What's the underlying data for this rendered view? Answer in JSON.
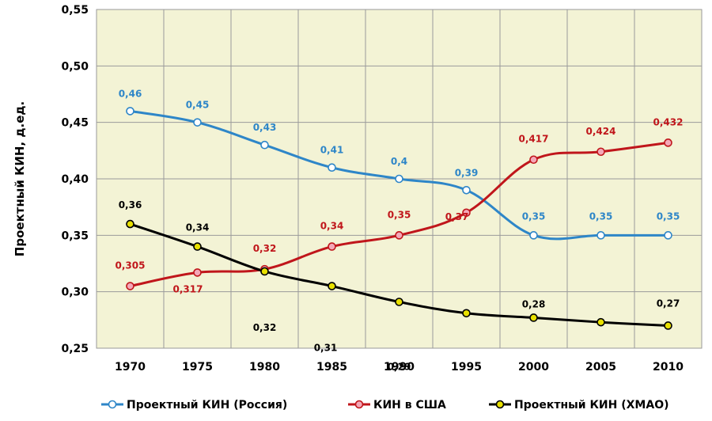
{
  "chart_data": {
    "type": "line",
    "ylabel": "Проектный КИН, д.ед.",
    "ylim": [
      0.25,
      0.55
    ],
    "grid": true,
    "legend_position": "bottom",
    "x": [
      "1970",
      "1975",
      "1980",
      "1985",
      "1990",
      "1995",
      "2000",
      "2005",
      "2010"
    ],
    "y_ticks": [
      "0,25",
      "0,30",
      "0,35",
      "0,40",
      "0,45",
      "0,50",
      "0,55"
    ],
    "plot_background": "#f3f3d5",
    "series": [
      {
        "name": "Проектный КИН (Россия)",
        "color": "#2e86c8",
        "marker_fill": "#ffffff",
        "values": [
          0.46,
          0.45,
          0.43,
          0.41,
          0.4,
          0.39,
          0.35,
          0.35,
          0.35
        ],
        "labels": [
          "0,46",
          "0,45",
          "0,43",
          "0,41",
          "0,4",
          "0,39",
          "0,35",
          "0,35",
          "0,35"
        ]
      },
      {
        "name": "КИН в США",
        "color": "#c0161b",
        "marker_fill": "#f4a8b8",
        "values": [
          0.305,
          0.317,
          0.32,
          0.34,
          0.35,
          0.37,
          0.417,
          0.424,
          0.432
        ],
        "labels": [
          "0,305",
          "0,317",
          "0,32",
          "0,34",
          "0,35",
          "0,37",
          "0,417",
          "0,424",
          "0,432"
        ]
      },
      {
        "name": "Проектный КИН (ХМАО)",
        "color": "#000000",
        "marker_fill": "#e8e000",
        "values": [
          0.36,
          0.34,
          0.318,
          0.305,
          0.291,
          0.281,
          0.277,
          0.273,
          0.27
        ],
        "labels": [
          "0,36",
          "0,34",
          "0,32",
          "0,31",
          "0,29",
          "",
          "0,28",
          "",
          "0,27"
        ]
      }
    ]
  }
}
